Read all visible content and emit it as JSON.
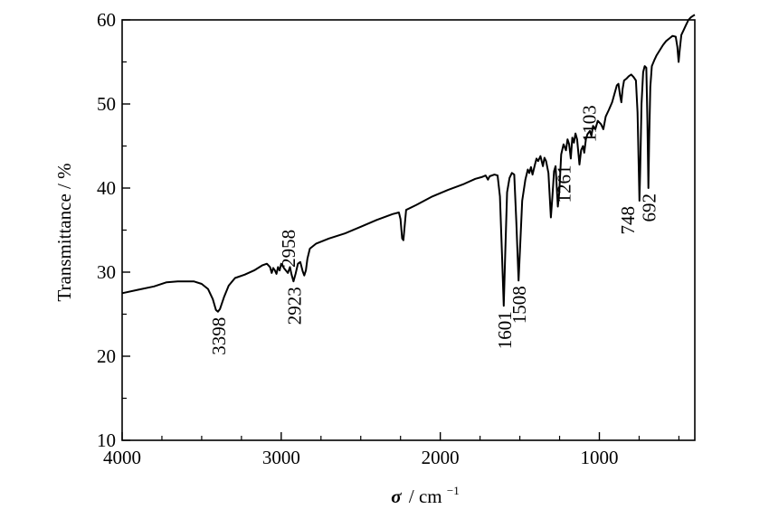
{
  "chart_data": {
    "type": "line",
    "xlabel_symbol": "σ",
    "xlabel_unit": "/ cm",
    "xlabel_exp": "−1",
    "ylabel": "Transmittance / %",
    "xlim": [
      4000,
      400
    ],
    "ylim": [
      10,
      60
    ],
    "x_ticks": [
      4000,
      3000,
      2000,
      1000
    ],
    "y_ticks": [
      10,
      20,
      30,
      40,
      50,
      60
    ],
    "x_ticklabels": [
      "4000",
      "3000",
      "2000",
      "1000"
    ],
    "y_ticklabels": [
      "10",
      "20",
      "30",
      "40",
      "50",
      "60"
    ],
    "grid": false,
    "series": [
      {
        "color": "#000000",
        "points": [
          [
            4000,
            27.5
          ],
          [
            3900,
            27.9
          ],
          [
            3800,
            28.3
          ],
          [
            3720,
            28.8
          ],
          [
            3650,
            28.9
          ],
          [
            3550,
            28.9
          ],
          [
            3500,
            28.6
          ],
          [
            3460,
            28.0
          ],
          [
            3430,
            26.8
          ],
          [
            3410,
            25.5
          ],
          [
            3398,
            25.3
          ],
          [
            3385,
            25.6
          ],
          [
            3360,
            27.0
          ],
          [
            3330,
            28.4
          ],
          [
            3290,
            29.3
          ],
          [
            3230,
            29.7
          ],
          [
            3170,
            30.2
          ],
          [
            3120,
            30.8
          ],
          [
            3090,
            31.0
          ],
          [
            3070,
            30.6
          ],
          [
            3060,
            29.9
          ],
          [
            3050,
            30.5
          ],
          [
            3040,
            30.2
          ],
          [
            3030,
            29.8
          ],
          [
            3020,
            30.6
          ],
          [
            3010,
            30.2
          ],
          [
            3000,
            31.0
          ],
          [
            2980,
            30.4
          ],
          [
            2958,
            29.9
          ],
          [
            2945,
            30.6
          ],
          [
            2935,
            29.7
          ],
          [
            2923,
            28.9
          ],
          [
            2910,
            29.8
          ],
          [
            2895,
            31.0
          ],
          [
            2880,
            31.2
          ],
          [
            2865,
            30.1
          ],
          [
            2855,
            29.6
          ],
          [
            2845,
            30.2
          ],
          [
            2835,
            31.6
          ],
          [
            2820,
            32.8
          ],
          [
            2780,
            33.4
          ],
          [
            2700,
            34.0
          ],
          [
            2600,
            34.6
          ],
          [
            2500,
            35.4
          ],
          [
            2400,
            36.2
          ],
          [
            2300,
            36.9
          ],
          [
            2260,
            37.1
          ],
          [
            2250,
            36.3
          ],
          [
            2240,
            34.0
          ],
          [
            2232,
            33.8
          ],
          [
            2224,
            35.5
          ],
          [
            2215,
            37.4
          ],
          [
            2150,
            38.0
          ],
          [
            2050,
            39.0
          ],
          [
            1950,
            39.8
          ],
          [
            1850,
            40.5
          ],
          [
            1780,
            41.1
          ],
          [
            1740,
            41.3
          ],
          [
            1715,
            41.5
          ],
          [
            1700,
            41.0
          ],
          [
            1690,
            41.4
          ],
          [
            1660,
            41.6
          ],
          [
            1640,
            41.5
          ],
          [
            1625,
            39.0
          ],
          [
            1612,
            32.0
          ],
          [
            1601,
            26.0
          ],
          [
            1592,
            32.0
          ],
          [
            1580,
            39.5
          ],
          [
            1565,
            41.2
          ],
          [
            1550,
            41.8
          ],
          [
            1535,
            41.6
          ],
          [
            1522,
            36.0
          ],
          [
            1508,
            29.0
          ],
          [
            1498,
            33.0
          ],
          [
            1485,
            38.5
          ],
          [
            1465,
            41.0
          ],
          [
            1450,
            42.2
          ],
          [
            1440,
            41.8
          ],
          [
            1430,
            42.5
          ],
          [
            1420,
            41.6
          ],
          [
            1405,
            42.8
          ],
          [
            1395,
            43.5
          ],
          [
            1385,
            43.2
          ],
          [
            1370,
            43.8
          ],
          [
            1355,
            42.6
          ],
          [
            1345,
            43.6
          ],
          [
            1335,
            43.2
          ],
          [
            1320,
            41.8
          ],
          [
            1305,
            36.5
          ],
          [
            1295,
            39.0
          ],
          [
            1285,
            42.0
          ],
          [
            1275,
            42.6
          ],
          [
            1261,
            37.8
          ],
          [
            1252,
            39.5
          ],
          [
            1240,
            44.0
          ],
          [
            1225,
            45.2
          ],
          [
            1210,
            44.5
          ],
          [
            1200,
            45.8
          ],
          [
            1190,
            45.2
          ],
          [
            1180,
            43.5
          ],
          [
            1170,
            46.0
          ],
          [
            1160,
            45.4
          ],
          [
            1150,
            46.5
          ],
          [
            1140,
            45.8
          ],
          [
            1125,
            42.8
          ],
          [
            1115,
            44.5
          ],
          [
            1103,
            45.0
          ],
          [
            1095,
            44.2
          ],
          [
            1085,
            45.8
          ],
          [
            1075,
            46.4
          ],
          [
            1060,
            46.8
          ],
          [
            1050,
            46.2
          ],
          [
            1040,
            47.4
          ],
          [
            1025,
            47.0
          ],
          [
            1010,
            48.0
          ],
          [
            990,
            47.6
          ],
          [
            975,
            47.0
          ],
          [
            960,
            48.5
          ],
          [
            940,
            49.3
          ],
          [
            920,
            50.2
          ],
          [
            905,
            51.2
          ],
          [
            890,
            52.2
          ],
          [
            880,
            52.4
          ],
          [
            870,
            51.0
          ],
          [
            862,
            50.2
          ],
          [
            854,
            51.8
          ],
          [
            845,
            52.8
          ],
          [
            830,
            53.0
          ],
          [
            815,
            53.3
          ],
          [
            800,
            53.5
          ],
          [
            785,
            53.2
          ],
          [
            770,
            52.8
          ],
          [
            760,
            49.0
          ],
          [
            752,
            42.0
          ],
          [
            748,
            38.5
          ],
          [
            743,
            42.5
          ],
          [
            735,
            50.0
          ],
          [
            725,
            53.8
          ],
          [
            715,
            54.5
          ],
          [
            705,
            54.3
          ],
          [
            698,
            48.0
          ],
          [
            692,
            40.0
          ],
          [
            687,
            45.5
          ],
          [
            680,
            52.0
          ],
          [
            670,
            54.5
          ],
          [
            655,
            55.2
          ],
          [
            640,
            55.8
          ],
          [
            620,
            56.4
          ],
          [
            600,
            57.0
          ],
          [
            580,
            57.5
          ],
          [
            560,
            57.8
          ],
          [
            540,
            58.1
          ],
          [
            520,
            58.0
          ],
          [
            510,
            56.8
          ],
          [
            502,
            55.0
          ],
          [
            495,
            56.4
          ],
          [
            485,
            58.2
          ],
          [
            470,
            58.8
          ],
          [
            455,
            59.4
          ],
          [
            440,
            60.0
          ],
          [
            425,
            60.3
          ],
          [
            410,
            60.5
          ],
          [
            400,
            60.6
          ]
        ]
      }
    ],
    "annotations": [
      {
        "text": "3398",
        "x": 3398,
        "y": 25.3,
        "side": "below"
      },
      {
        "text": "2923",
        "x": 2923,
        "y": 28.9,
        "side": "below"
      },
      {
        "text": "2958",
        "x": 2958,
        "y": 29.9,
        "side": "above"
      },
      {
        "text": "1601",
        "x": 1601,
        "y": 26.0,
        "side": "below"
      },
      {
        "text": "1508",
        "x": 1508,
        "y": 29.0,
        "side": "below"
      },
      {
        "text": "1261",
        "x": 1261,
        "y": 37.8,
        "side": "right"
      },
      {
        "text": "1103",
        "x": 1103,
        "y": 45.0,
        "side": "right"
      },
      {
        "text": "748",
        "x": 748,
        "y": 38.5,
        "side": "left"
      },
      {
        "text": "692",
        "x": 692,
        "y": 40.0,
        "side": "below"
      }
    ]
  }
}
